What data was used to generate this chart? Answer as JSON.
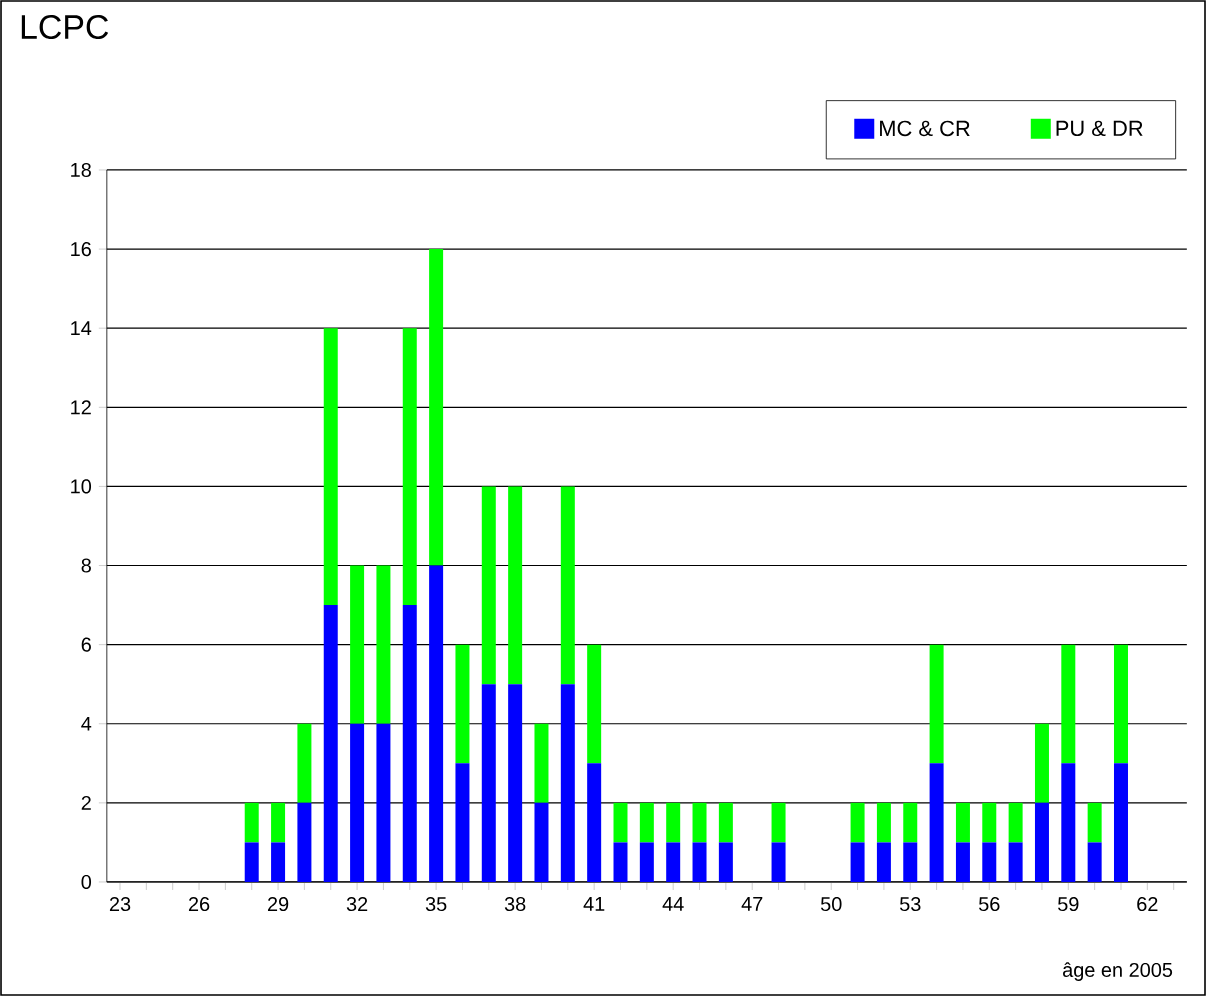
{
  "chart_data": {
    "type": "bar",
    "title": "LCPC",
    "xlabel": "âge en 2005",
    "stacked": true,
    "categories": [
      "23",
      null,
      null,
      "26",
      null,
      null,
      "29",
      null,
      null,
      "32",
      null,
      null,
      "35",
      null,
      null,
      "38",
      null,
      null,
      "41",
      null,
      null,
      "44",
      null,
      null,
      "47",
      null,
      null,
      "50",
      null,
      null,
      "53",
      null,
      null,
      "56",
      null,
      null,
      "59",
      null,
      null,
      "62",
      null
    ],
    "series": [
      {
        "name": "MC & CR",
        "color": "#0000ff",
        "values": [
          0,
          0,
          0,
          0,
          0,
          1,
          1,
          2,
          7,
          4,
          4,
          7,
          8,
          3,
          5,
          5,
          2,
          5,
          3,
          1,
          1,
          1,
          1,
          1,
          0,
          1,
          0,
          0,
          1,
          1,
          1,
          3,
          1,
          1,
          1,
          2,
          3,
          1,
          3,
          0,
          0
        ]
      },
      {
        "name": "PU & DR",
        "color": "#00ff00",
        "values": [
          0,
          0,
          0,
          0,
          0,
          1,
          1,
          2,
          7,
          4,
          4,
          7,
          8,
          3,
          5,
          5,
          2,
          5,
          3,
          1,
          1,
          1,
          1,
          1,
          0,
          1,
          0,
          0,
          1,
          1,
          1,
          3,
          1,
          1,
          1,
          2,
          3,
          1,
          3,
          0,
          0
        ]
      }
    ],
    "ylim": [
      0,
      18
    ],
    "yticks": [
      0,
      2,
      4,
      6,
      8,
      10,
      12,
      14,
      16,
      18
    ],
    "grid": "y",
    "legend": "top right"
  }
}
